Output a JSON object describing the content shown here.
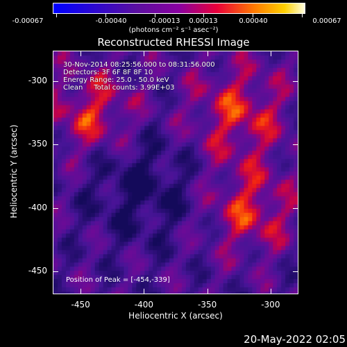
{
  "colorbar": {
    "labels": [
      "-0.00067",
      "-0.00040",
      "-0.00013",
      "0.00013",
      "0.00040",
      "0.00067"
    ],
    "units_html": "(photons cm⁻² s⁻¹ asec⁻²)"
  },
  "title": "Reconstructed RHESSI Image",
  "info": {
    "line1": "30-Nov-2014 08:25:56.000 to 08:31:56.000",
    "line2": "Detectors: 3F 6F 8F 8F 10",
    "line3": "Energy Range: 25.0 - 50.0 keV",
    "line4": "Clean     Total counts: 3.99E+03"
  },
  "peak": "Position of Peak = [-454,-339]",
  "axes": {
    "xlabel": "Heliocentric X (arcsec)",
    "ylabel": "Heliocentric Y (arcsec)",
    "xticks": [
      "-450",
      "-400",
      "-350",
      "-300"
    ],
    "yticks": [
      "-300",
      "-350",
      "-400",
      "-450"
    ],
    "xlim": [
      -472,
      -278
    ],
    "ylim": [
      -468,
      -276
    ]
  },
  "footer_date": "20-May-2022 02:05",
  "colors": {
    "background": "#000000",
    "foreground": "#ffffff"
  }
}
